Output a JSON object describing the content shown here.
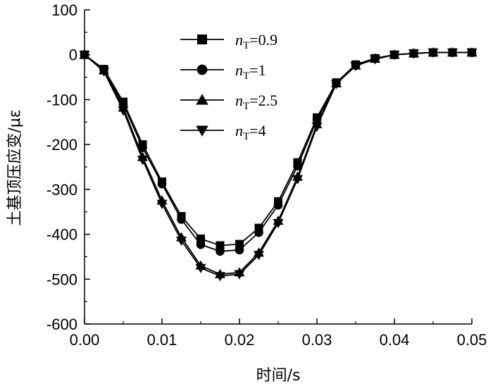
{
  "chart_data": {
    "type": "line",
    "xlabel": "时间/s",
    "ylabel": "土基顶压应变/με",
    "xlim": [
      0,
      0.05
    ],
    "ylim": [
      -600,
      100
    ],
    "xticks": [
      0.0,
      0.01,
      0.02,
      0.03,
      0.04,
      0.05
    ],
    "xtick_labels": [
      "0.00",
      "0.01",
      "0.02",
      "0.03",
      "0.04",
      "0.05"
    ],
    "yticks": [
      100,
      0,
      -100,
      -200,
      -300,
      -400,
      -500,
      -600
    ],
    "ytick_labels": [
      "100",
      "0",
      "-100",
      "-200",
      "-300",
      "-400",
      "-500",
      "-600"
    ],
    "grid": false,
    "legend_position": "top-center",
    "color": "#000000",
    "x": [
      0,
      0.0025,
      0.005,
      0.0075,
      0.01,
      0.0125,
      0.015,
      0.0175,
      0.02,
      0.0225,
      0.025,
      0.0275,
      0.03,
      0.0325,
      0.035,
      0.0375,
      0.04,
      0.0425,
      0.045,
      0.0475,
      0.05
    ],
    "series": [
      {
        "name": "0.9",
        "legend_prefix": "n",
        "legend_sub": "T",
        "marker": "square",
        "values": [
          0,
          -32,
          -105,
          -200,
          -283,
          -360,
          -410,
          -425,
          -422,
          -386,
          -327,
          -240,
          -140,
          -62,
          -22,
          -8,
          0,
          3,
          5,
          5,
          5
        ]
      },
      {
        "name": "1",
        "legend_prefix": "n",
        "legend_sub": "T",
        "marker": "circle",
        "values": [
          0,
          -33,
          -110,
          -207,
          -288,
          -367,
          -423,
          -438,
          -435,
          -396,
          -335,
          -248,
          -145,
          -63,
          -23,
          -8,
          0,
          3,
          5,
          5,
          5
        ]
      },
      {
        "name": "2.5",
        "legend_prefix": "n",
        "legend_sub": "T",
        "marker": "triangle-up",
        "values": [
          0,
          -35,
          -118,
          -228,
          -325,
          -407,
          -470,
          -489,
          -485,
          -441,
          -370,
          -272,
          -155,
          -64,
          -24,
          -9,
          0,
          3,
          5,
          5,
          5
        ]
      },
      {
        "name": "4",
        "legend_prefix": "n",
        "legend_sub": "T",
        "marker": "triangle-down",
        "values": [
          0,
          -37,
          -124,
          -234,
          -332,
          -414,
          -475,
          -493,
          -489,
          -446,
          -375,
          -277,
          -160,
          -65,
          -25,
          -10,
          0,
          3,
          5,
          5,
          5
        ]
      }
    ]
  }
}
